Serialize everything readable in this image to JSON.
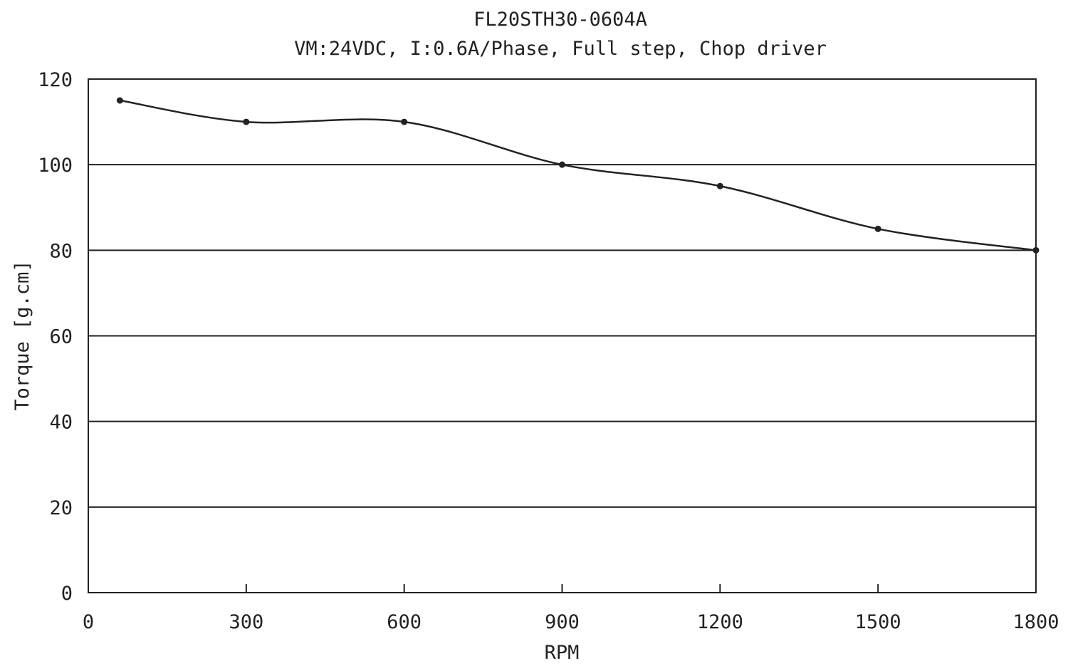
{
  "chart_data": {
    "type": "line",
    "title": "FL20STH30-0604A",
    "subtitle": "VM:24VDC, I:0.6A/Phase, Full step, Chop driver",
    "xlabel": "RPM",
    "ylabel": "Torque  [g.cm]",
    "xlim": [
      0,
      1800
    ],
    "ylim": [
      0,
      120
    ],
    "x_ticks": [
      0,
      300,
      600,
      900,
      1200,
      1500,
      1800
    ],
    "y_ticks": [
      0,
      20,
      40,
      60,
      80,
      100,
      120
    ],
    "grid": "horizontal",
    "series": [
      {
        "x": [
          60,
          300,
          600,
          900,
          1200,
          1500,
          1800
        ],
        "values": [
          115,
          110,
          110,
          100,
          95,
          85,
          80
        ]
      }
    ]
  }
}
